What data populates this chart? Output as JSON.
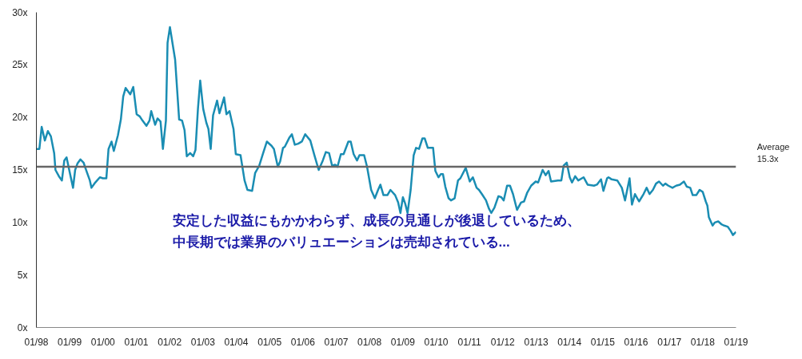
{
  "chart_data": {
    "type": "line",
    "x": [
      "1998-01-01",
      "1998-02-03",
      "1998-02-28",
      "1998-04-04",
      "1998-05-07",
      "1998-06-09",
      "1998-07-15",
      "1998-07-29",
      "1998-09-05",
      "1998-10-08",
      "1998-11-03",
      "1998-11-28",
      "1999-01-01",
      "1999-02-07",
      "1999-03-02",
      "1999-03-27",
      "1999-04-29",
      "1999-06-02",
      "1999-07-08",
      "1999-08-10",
      "1999-08-28",
      "1999-10-08",
      "1999-11-28",
      "2000-01-01",
      "2000-02-07",
      "2000-03-02",
      "2000-04-04",
      "2000-04-29",
      "2000-06-13",
      "2000-07-15",
      "2000-08-10",
      "2000-09-05",
      "2000-10-26",
      "2000-11-28",
      "2001-01-04",
      "2001-02-07",
      "2001-03-09",
      "2001-04-22",
      "2001-05-25",
      "2001-06-13",
      "2001-07-26",
      "2001-08-21",
      "2001-09-23",
      "2001-10-19",
      "2001-11-21",
      "2001-12-09",
      "2002-01-04",
      "2002-03-02",
      "2002-04-15",
      "2002-05-17",
      "2002-06-13",
      "2002-07-08",
      "2002-08-14",
      "2002-09-16",
      "2002-10-11",
      "2002-11-07",
      "2002-12-02",
      "2003-01-04",
      "2003-02-07",
      "2003-03-02",
      "2003-03-27",
      "2003-04-22",
      "2003-06-05",
      "2003-07-01",
      "2003-08-21",
      "2003-09-16",
      "2003-10-19",
      "2003-12-02",
      "2003-12-27",
      "2004-02-17",
      "2004-04-01",
      "2004-05-03",
      "2004-06-23",
      "2004-07-26",
      "2004-09-09",
      "2004-10-22",
      "2004-12-02",
      "2005-01-22",
      "2005-02-17",
      "2005-04-01",
      "2005-04-26",
      "2005-05-28",
      "2005-06-16",
      "2005-08-07",
      "2005-09-02",
      "2005-10-04",
      "2005-11-10",
      "2005-12-20",
      "2006-01-26",
      "2006-03-23",
      "2006-05-07",
      "2006-06-23",
      "2006-08-07",
      "2006-09-09",
      "2006-10-15",
      "2006-11-17",
      "2006-12-20",
      "2007-01-15",
      "2007-02-21",
      "2007-03-23",
      "2007-05-14",
      "2007-06-09",
      "2007-07-11",
      "2007-08-17",
      "2007-09-13",
      "2007-11-03",
      "2007-12-05",
      "2008-01-19",
      "2008-02-28",
      "2008-04-04",
      "2008-04-29",
      "2008-06-02",
      "2008-07-15",
      "2008-08-17",
      "2008-10-08",
      "2008-11-10",
      "2008-12-05",
      "2009-01-01",
      "2009-01-26",
      "2009-02-21",
      "2009-03-27",
      "2009-04-29",
      "2009-05-25",
      "2009-06-27",
      "2009-08-03",
      "2009-08-28",
      "2009-10-01",
      "2009-10-26",
      "2009-11-28",
      "2009-12-23",
      "2010-01-26",
      "2010-02-21",
      "2010-03-16",
      "2010-04-11",
      "2010-05-17",
      "2010-06-13",
      "2010-07-22",
      "2010-08-28",
      "2010-09-23",
      "2010-11-21",
      "2011-01-04",
      "2011-02-07",
      "2011-03-20",
      "2011-04-15",
      "2011-05-17",
      "2011-07-01",
      "2011-08-03",
      "2011-08-28",
      "2011-10-01",
      "2011-11-14",
      "2011-12-16",
      "2012-01-11",
      "2012-02-17",
      "2012-03-20",
      "2012-04-22",
      "2012-06-05",
      "2012-07-19",
      "2012-08-21",
      "2012-09-23",
      "2012-11-07",
      "2012-12-27",
      "2013-01-22",
      "2013-03-13",
      "2013-04-15",
      "2013-05-17",
      "2013-06-13",
      "2013-08-28",
      "2013-10-04",
      "2013-10-29",
      "2013-12-02",
      "2014-01-04",
      "2014-01-29",
      "2014-03-05",
      "2014-04-08",
      "2014-06-05",
      "2014-07-19",
      "2014-09-27",
      "2014-10-29",
      "2014-12-13",
      "2015-01-08",
      "2015-02-17",
      "2015-03-05",
      "2015-04-08",
      "2015-06-09",
      "2015-07-29",
      "2015-09-02",
      "2015-10-22",
      "2015-11-17",
      "2015-12-20",
      "2016-02-03",
      "2016-03-23",
      "2016-04-26",
      "2016-05-28",
      "2016-07-04",
      "2016-08-07",
      "2016-09-09",
      "2016-10-22",
      "2016-11-17",
      "2016-12-20",
      "2017-02-03",
      "2017-03-16",
      "2017-04-26",
      "2017-06-09",
      "2017-07-11",
      "2017-08-17",
      "2017-09-13",
      "2017-10-22",
      "2017-11-28",
      "2018-01-01",
      "2018-02-03",
      "2018-02-21",
      "2018-03-09",
      "2018-04-19",
      "2018-05-14",
      "2018-06-20",
      "2018-07-29",
      "2018-08-25",
      "2018-10-01",
      "2018-11-03",
      "2018-11-28",
      "2019-01-01"
    ],
    "series": [
      {
        "color": "#1a8db3",
        "values": [
          17.0,
          17.0,
          19.1,
          17.8,
          18.7,
          18.2,
          16.6,
          15.0,
          14.4,
          14.0,
          15.9,
          16.2,
          14.8,
          13.3,
          15.0,
          15.6,
          16.0,
          15.7,
          14.8,
          14.0,
          13.3,
          13.8,
          14.3,
          14.2,
          14.2,
          17.0,
          17.7,
          16.8,
          18.3,
          19.8,
          22.0,
          22.8,
          22.2,
          22.9,
          20.3,
          20.1,
          19.7,
          19.2,
          19.7,
          20.6,
          19.3,
          19.9,
          19.6,
          17.0,
          19.7,
          27.1,
          28.6,
          25.5,
          19.8,
          19.7,
          18.8,
          16.3,
          16.6,
          16.3,
          16.9,
          20.8,
          23.5,
          20.8,
          19.5,
          18.9,
          17.0,
          20.2,
          21.6,
          20.4,
          21.9,
          20.3,
          20.6,
          18.9,
          16.5,
          16.4,
          14.0,
          13.1,
          13.0,
          14.7,
          15.4,
          16.6,
          17.7,
          17.3,
          17.0,
          15.3,
          15.8,
          17.1,
          17.2,
          18.1,
          18.4,
          17.4,
          17.5,
          17.7,
          18.4,
          17.8,
          16.4,
          15.0,
          15.9,
          16.7,
          16.6,
          15.4,
          15.5,
          15.3,
          16.5,
          16.5,
          17.7,
          17.7,
          16.5,
          15.9,
          16.4,
          16.4,
          15.3,
          13.1,
          12.3,
          13.1,
          13.6,
          12.6,
          12.6,
          13.1,
          12.6,
          11.9,
          10.9,
          12.4,
          11.8,
          10.9,
          13.1,
          16.4,
          17.1,
          17.0,
          18.0,
          18.0,
          17.1,
          17.1,
          17.1,
          14.9,
          14.3,
          14.6,
          14.6,
          13.4,
          12.3,
          12.1,
          12.3,
          14.0,
          14.2,
          15.2,
          13.9,
          14.3,
          13.3,
          13.1,
          12.7,
          12.1,
          11.3,
          10.9,
          11.4,
          12.5,
          12.4,
          12.1,
          13.5,
          13.5,
          12.7,
          11.2,
          11.9,
          12.0,
          12.8,
          13.5,
          13.9,
          13.8,
          15.0,
          14.5,
          14.9,
          13.9,
          14.0,
          14.0,
          15.4,
          15.7,
          14.3,
          13.8,
          14.4,
          14.0,
          14.3,
          13.6,
          13.5,
          13.6,
          14.1,
          13.0,
          14.2,
          14.3,
          14.1,
          14.0,
          13.3,
          12.1,
          14.2,
          11.7,
          12.7,
          12.0,
          12.7,
          13.3,
          12.7,
          13.1,
          13.7,
          13.9,
          13.5,
          13.7,
          13.5,
          13.3,
          13.5,
          13.6,
          13.9,
          13.4,
          13.3,
          12.6,
          12.6,
          13.1,
          12.9,
          12.0,
          11.6,
          10.5,
          9.7,
          10.0,
          10.1,
          9.8,
          9.7,
          9.6,
          9.2,
          8.8,
          9.1
        ]
      }
    ],
    "xlim": [
      "1998-01-01",
      "2019-01-01"
    ],
    "xticks": [
      {
        "value": "1998-01",
        "label": "01/98"
      },
      {
        "value": "1999-01",
        "label": "01/99"
      },
      {
        "value": "2000-01",
        "label": "01/00"
      },
      {
        "value": "2001-01",
        "label": "01/01"
      },
      {
        "value": "2002-01",
        "label": "01/02"
      },
      {
        "value": "2003-01",
        "label": "01/03"
      },
      {
        "value": "2004-01",
        "label": "01/04"
      },
      {
        "value": "2005-01",
        "label": "01/05"
      },
      {
        "value": "2006-01",
        "label": "01/06"
      },
      {
        "value": "2007-01",
        "label": "01/07"
      },
      {
        "value": "2008-01",
        "label": "01/08"
      },
      {
        "value": "2009-01",
        "label": "01/09"
      },
      {
        "value": "2010-01",
        "label": "01/10"
      },
      {
        "value": "2011-01",
        "label": "01/11"
      },
      {
        "value": "2012-01",
        "label": "01/12"
      },
      {
        "value": "2013-01",
        "label": "01/13"
      },
      {
        "value": "2014-01",
        "label": "01/14"
      },
      {
        "value": "2015-01",
        "label": "01/15"
      },
      {
        "value": "2016-01",
        "label": "01/16"
      },
      {
        "value": "2017-01",
        "label": "01/17"
      },
      {
        "value": "2018-01",
        "label": "01/18"
      },
      {
        "value": "2019-01",
        "label": "01/19"
      }
    ],
    "ylim": [
      0,
      30
    ],
    "yticks": [
      {
        "value": 0,
        "label": "0x"
      },
      {
        "value": 5,
        "label": "5x"
      },
      {
        "value": 10,
        "label": "10x"
      },
      {
        "value": 15,
        "label": "15x"
      },
      {
        "value": 20,
        "label": "20x"
      },
      {
        "value": 25,
        "label": "25x"
      },
      {
        "value": 30,
        "label": "30x"
      }
    ],
    "ref_lines": [
      {
        "axis": "y",
        "value": 15.3,
        "label": "Average\n15.3x",
        "color": "#666666"
      }
    ],
    "annotations": [
      "安定した収益にもかかわらず、成長の見通しが後退しているため、中長期では業界のバリュエーションは売却されている..."
    ],
    "grid": false,
    "marker": "none",
    "line_style": "solid"
  }
}
